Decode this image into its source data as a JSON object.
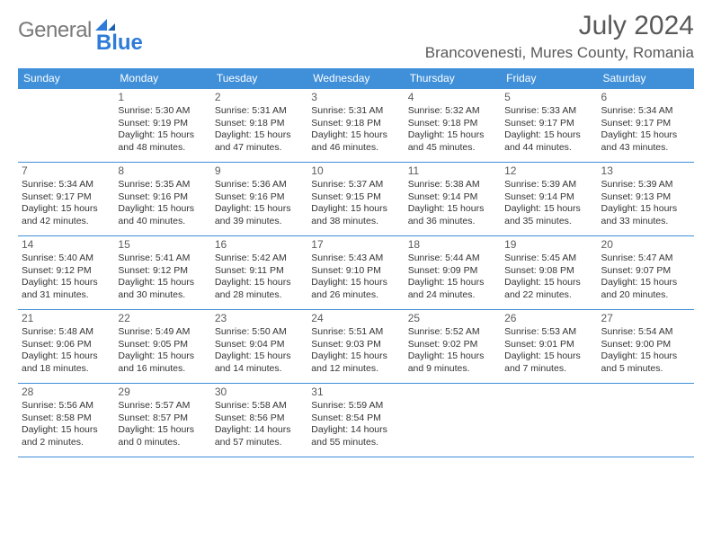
{
  "logo": {
    "text1": "General",
    "text2": "Blue",
    "color1": "#7a7a7a",
    "color2": "#2f7bd9"
  },
  "header": {
    "title": "July 2024",
    "location": "Brancovenesti, Mures County, Romania"
  },
  "colors": {
    "header_bg": "#3f8fd9",
    "header_text": "#ffffff",
    "row_border": "#3f8fd9",
    "text": "#333333",
    "muted": "#595959"
  },
  "days_of_week": [
    "Sunday",
    "Monday",
    "Tuesday",
    "Wednesday",
    "Thursday",
    "Friday",
    "Saturday"
  ],
  "weeks": [
    [
      null,
      {
        "n": "1",
        "sunrise": "5:30 AM",
        "sunset": "9:19 PM",
        "daylight": "15 hours and 48 minutes."
      },
      {
        "n": "2",
        "sunrise": "5:31 AM",
        "sunset": "9:18 PM",
        "daylight": "15 hours and 47 minutes."
      },
      {
        "n": "3",
        "sunrise": "5:31 AM",
        "sunset": "9:18 PM",
        "daylight": "15 hours and 46 minutes."
      },
      {
        "n": "4",
        "sunrise": "5:32 AM",
        "sunset": "9:18 PM",
        "daylight": "15 hours and 45 minutes."
      },
      {
        "n": "5",
        "sunrise": "5:33 AM",
        "sunset": "9:17 PM",
        "daylight": "15 hours and 44 minutes."
      },
      {
        "n": "6",
        "sunrise": "5:34 AM",
        "sunset": "9:17 PM",
        "daylight": "15 hours and 43 minutes."
      }
    ],
    [
      {
        "n": "7",
        "sunrise": "5:34 AM",
        "sunset": "9:17 PM",
        "daylight": "15 hours and 42 minutes."
      },
      {
        "n": "8",
        "sunrise": "5:35 AM",
        "sunset": "9:16 PM",
        "daylight": "15 hours and 40 minutes."
      },
      {
        "n": "9",
        "sunrise": "5:36 AM",
        "sunset": "9:16 PM",
        "daylight": "15 hours and 39 minutes."
      },
      {
        "n": "10",
        "sunrise": "5:37 AM",
        "sunset": "9:15 PM",
        "daylight": "15 hours and 38 minutes."
      },
      {
        "n": "11",
        "sunrise": "5:38 AM",
        "sunset": "9:14 PM",
        "daylight": "15 hours and 36 minutes."
      },
      {
        "n": "12",
        "sunrise": "5:39 AM",
        "sunset": "9:14 PM",
        "daylight": "15 hours and 35 minutes."
      },
      {
        "n": "13",
        "sunrise": "5:39 AM",
        "sunset": "9:13 PM",
        "daylight": "15 hours and 33 minutes."
      }
    ],
    [
      {
        "n": "14",
        "sunrise": "5:40 AM",
        "sunset": "9:12 PM",
        "daylight": "15 hours and 31 minutes."
      },
      {
        "n": "15",
        "sunrise": "5:41 AM",
        "sunset": "9:12 PM",
        "daylight": "15 hours and 30 minutes."
      },
      {
        "n": "16",
        "sunrise": "5:42 AM",
        "sunset": "9:11 PM",
        "daylight": "15 hours and 28 minutes."
      },
      {
        "n": "17",
        "sunrise": "5:43 AM",
        "sunset": "9:10 PM",
        "daylight": "15 hours and 26 minutes."
      },
      {
        "n": "18",
        "sunrise": "5:44 AM",
        "sunset": "9:09 PM",
        "daylight": "15 hours and 24 minutes."
      },
      {
        "n": "19",
        "sunrise": "5:45 AM",
        "sunset": "9:08 PM",
        "daylight": "15 hours and 22 minutes."
      },
      {
        "n": "20",
        "sunrise": "5:47 AM",
        "sunset": "9:07 PM",
        "daylight": "15 hours and 20 minutes."
      }
    ],
    [
      {
        "n": "21",
        "sunrise": "5:48 AM",
        "sunset": "9:06 PM",
        "daylight": "15 hours and 18 minutes."
      },
      {
        "n": "22",
        "sunrise": "5:49 AM",
        "sunset": "9:05 PM",
        "daylight": "15 hours and 16 minutes."
      },
      {
        "n": "23",
        "sunrise": "5:50 AM",
        "sunset": "9:04 PM",
        "daylight": "15 hours and 14 minutes."
      },
      {
        "n": "24",
        "sunrise": "5:51 AM",
        "sunset": "9:03 PM",
        "daylight": "15 hours and 12 minutes."
      },
      {
        "n": "25",
        "sunrise": "5:52 AM",
        "sunset": "9:02 PM",
        "daylight": "15 hours and 9 minutes."
      },
      {
        "n": "26",
        "sunrise": "5:53 AM",
        "sunset": "9:01 PM",
        "daylight": "15 hours and 7 minutes."
      },
      {
        "n": "27",
        "sunrise": "5:54 AM",
        "sunset": "9:00 PM",
        "daylight": "15 hours and 5 minutes."
      }
    ],
    [
      {
        "n": "28",
        "sunrise": "5:56 AM",
        "sunset": "8:58 PM",
        "daylight": "15 hours and 2 minutes."
      },
      {
        "n": "29",
        "sunrise": "5:57 AM",
        "sunset": "8:57 PM",
        "daylight": "15 hours and 0 minutes."
      },
      {
        "n": "30",
        "sunrise": "5:58 AM",
        "sunset": "8:56 PM",
        "daylight": "14 hours and 57 minutes."
      },
      {
        "n": "31",
        "sunrise": "5:59 AM",
        "sunset": "8:54 PM",
        "daylight": "14 hours and 55 minutes."
      },
      null,
      null,
      null
    ]
  ],
  "labels": {
    "sunrise_prefix": "Sunrise: ",
    "sunset_prefix": "Sunset: ",
    "daylight_prefix": "Daylight: "
  }
}
